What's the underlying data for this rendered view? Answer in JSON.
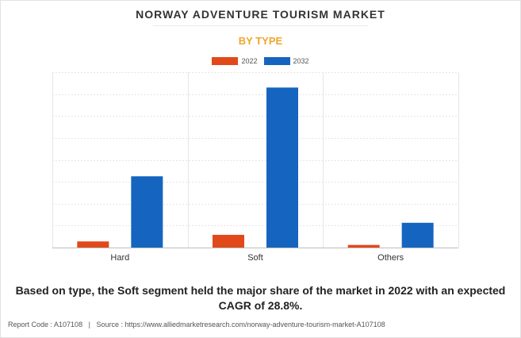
{
  "chart_data": {
    "type": "bar",
    "title": "NORWAY ADVENTURE TOURISM MARKET",
    "subtitle": "BY TYPE",
    "categories": [
      "Hard",
      "Soft",
      "Others"
    ],
    "series": [
      {
        "name": "2022",
        "color": "#e2491a",
        "values": [
          2.8,
          5.8,
          1.2
        ]
      },
      {
        "name": "2032",
        "color": "#1565c0",
        "values": [
          32.5,
          73.0,
          11.3
        ]
      }
    ],
    "ylim": [
      0,
      80
    ],
    "y_gridlines": 8,
    "legend_position": "top-center",
    "grid": true
  },
  "summary": "Based on type, the Soft segment held the major share of the market in 2022 with an expected CAGR of 28.8%.",
  "footer": {
    "report_code": "Report Code : A107108",
    "separator": "|",
    "source": "Source : https://www.alliedmarketresearch.com/norway-adventure-tourism-market-A107108"
  }
}
